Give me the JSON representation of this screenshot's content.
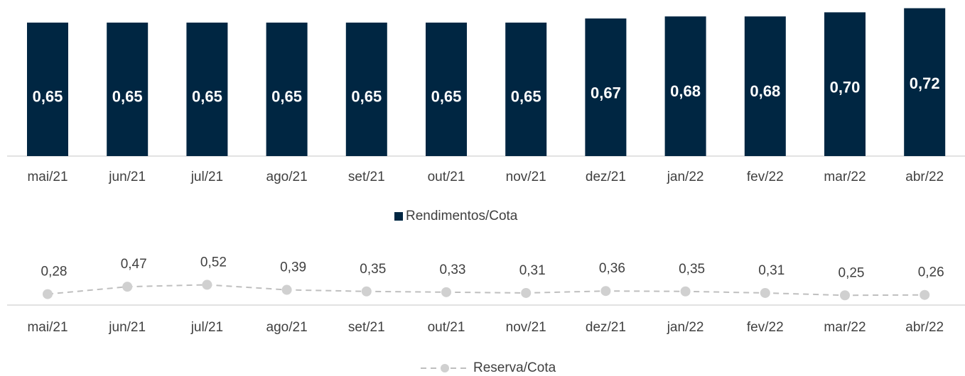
{
  "chart_data": [
    {
      "type": "bar",
      "categories": [
        "mai/21",
        "jun/21",
        "jul/21",
        "ago/21",
        "set/21",
        "out/21",
        "nov/21",
        "dez/21",
        "jan/22",
        "fev/22",
        "mar/22",
        "abr/22"
      ],
      "series": [
        {
          "name": "Rendimentos/Cota",
          "color": "#002642",
          "values": [
            0.65,
            0.65,
            0.65,
            0.65,
            0.65,
            0.65,
            0.65,
            0.67,
            0.68,
            0.68,
            0.7,
            0.72
          ],
          "value_labels": [
            "0,65",
            "0,65",
            "0,65",
            "0,65",
            "0,65",
            "0,65",
            "0,65",
            "0,67",
            "0,68",
            "0,68",
            "0,70",
            "0,72"
          ]
        }
      ],
      "ylim": [
        0,
        0.76
      ]
    },
    {
      "type": "line",
      "categories": [
        "mai/21",
        "jun/21",
        "jul/21",
        "ago/21",
        "set/21",
        "out/21",
        "nov/21",
        "dez/21",
        "jan/22",
        "fev/22",
        "mar/22",
        "abr/22"
      ],
      "series": [
        {
          "name": "Reserva/Cota",
          "color": "#bfbfbf",
          "values": [
            0.28,
            0.47,
            0.52,
            0.39,
            0.35,
            0.33,
            0.31,
            0.36,
            0.35,
            0.31,
            0.25,
            0.26
          ],
          "value_labels": [
            "0,28",
            "0,47",
            "0,52",
            "0,39",
            "0,35",
            "0,33",
            "0,31",
            "0,36",
            "0,35",
            "0,31",
            "0,25",
            "0,26"
          ]
        }
      ],
      "ylim": [
        0,
        1.8
      ]
    }
  ]
}
